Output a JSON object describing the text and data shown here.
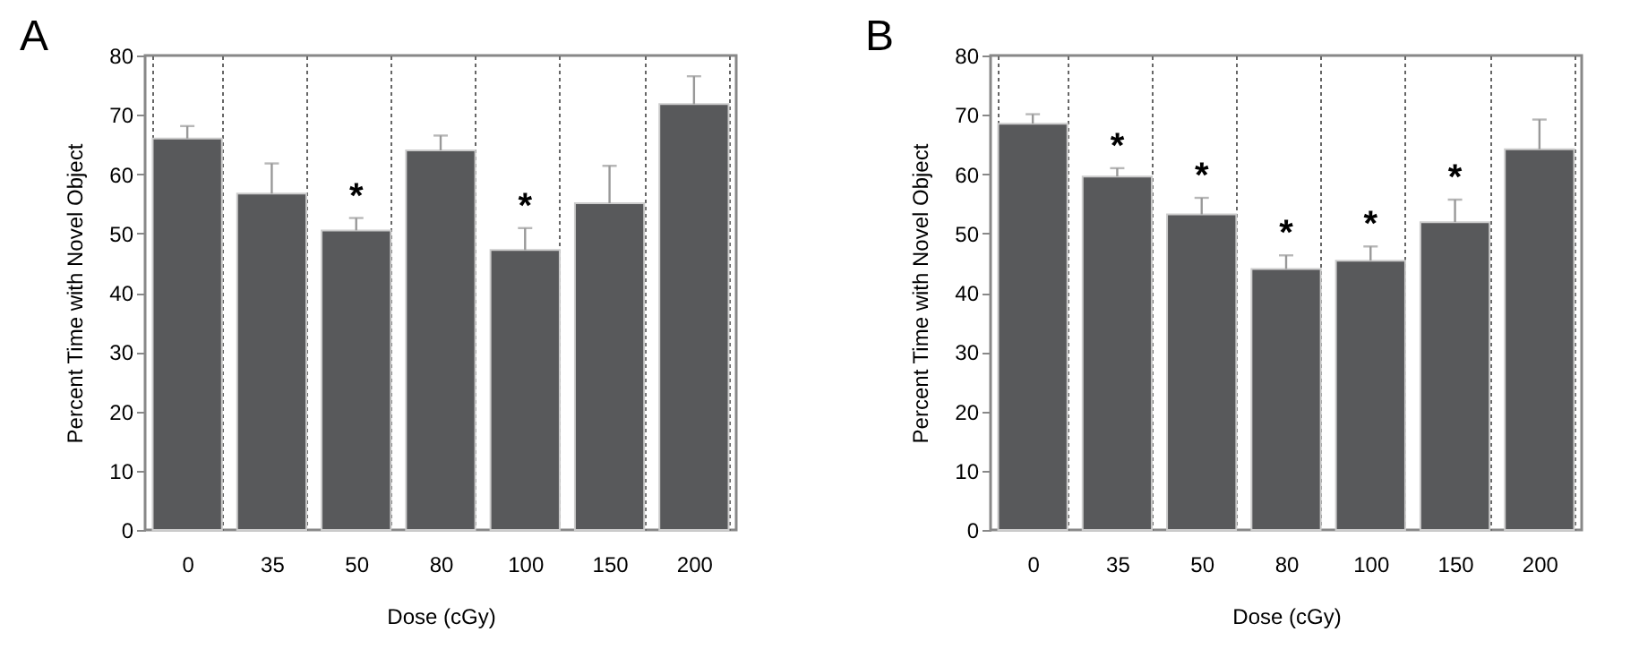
{
  "chart_data": [
    {
      "type": "bar",
      "title": "A",
      "xlabel": "Dose (cGy)",
      "ylabel": "Percent Time with Novel Object",
      "categories": [
        "0",
        "35",
        "50",
        "80",
        "100",
        "150",
        "200"
      ],
      "values": [
        66,
        56.7,
        50.5,
        64,
        47.2,
        55.1,
        71.8
      ],
      "color": "#58595b",
      "errors": [
        [
          66,
          68.1
        ],
        [
          56.7,
          61.8
        ],
        [
          50.5,
          52.6
        ],
        [
          64,
          66.5
        ],
        [
          47.2,
          50.9
        ],
        [
          55.1,
          61.4
        ],
        [
          71.8,
          76.5
        ]
      ],
      "ylim": [
        0,
        80
      ],
      "yticks": [
        0,
        10,
        20,
        30,
        40,
        50,
        60,
        70,
        80
      ],
      "grid": "x",
      "annotations": [
        {
          "text": "*",
          "x": "50",
          "y": 52.6
        },
        {
          "text": "*",
          "x": "100",
          "y": 50.9
        }
      ]
    },
    {
      "type": "bar",
      "title": "B",
      "xlabel": "Dose (cGy)",
      "ylabel": "Percent Time with Novel Object",
      "categories": [
        "0",
        "35",
        "50",
        "80",
        "100",
        "150",
        "200"
      ],
      "values": [
        68.5,
        59.6,
        53.2,
        44,
        45.4,
        51.9,
        64.2
      ],
      "color": "#58595b",
      "errors": [
        [
          68.5,
          70.1
        ],
        [
          59.6,
          61
        ],
        [
          53.2,
          56
        ],
        [
          44,
          46.3
        ],
        [
          45.4,
          47.8
        ],
        [
          51.9,
          55.7
        ],
        [
          64.2,
          69.2
        ]
      ],
      "ylim": [
        0,
        80
      ],
      "yticks": [
        0,
        10,
        20,
        30,
        40,
        50,
        60,
        70,
        80
      ],
      "grid": "x",
      "annotations": [
        {
          "text": "*",
          "x": "35",
          "y": 61
        },
        {
          "text": "*",
          "x": "50",
          "y": 56
        },
        {
          "text": "*",
          "x": "80",
          "y": 46.3
        },
        {
          "text": "*",
          "x": "100",
          "y": 47.8
        },
        {
          "text": "*",
          "x": "150",
          "y": 55.7
        }
      ]
    }
  ]
}
